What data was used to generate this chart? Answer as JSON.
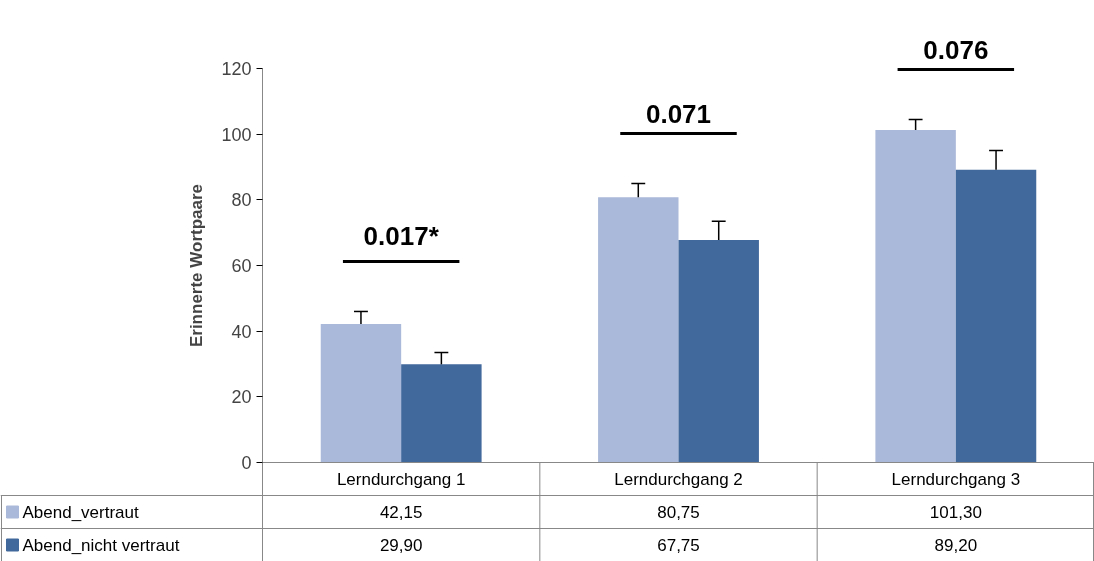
{
  "chart_data": {
    "type": "bar",
    "ylabel": "Erinnerte Wortpaare",
    "categories": [
      "Lerndurchgang 1",
      "Lerndurchgang 2",
      "Lerndurchgang 3"
    ],
    "series": [
      {
        "name": "Abend_vertraut",
        "color": "#aab9d9",
        "values": [
          42.15,
          80.75,
          101.3
        ],
        "value_labels": [
          "42,15",
          "80,75",
          "101,30"
        ],
        "errors": [
          [
            42.15,
            46
          ],
          [
            80.75,
            85
          ],
          [
            101.3,
            104.5
          ]
        ]
      },
      {
        "name": "Abend_nicht vertraut",
        "color": "#41699c",
        "values": [
          29.9,
          67.75,
          89.2
        ],
        "value_labels": [
          "29,90",
          "67,75",
          "89,20"
        ],
        "errors": [
          [
            29.9,
            33.5
          ],
          [
            67.75,
            73.5
          ],
          [
            89.2,
            95
          ]
        ]
      }
    ],
    "annotations": [
      "0.017*",
      "0.071",
      "0.076"
    ],
    "ylim": [
      0,
      120
    ],
    "yticks": [
      0,
      20,
      40,
      60,
      80,
      100,
      120
    ],
    "grid": false,
    "legend": "bottom"
  }
}
